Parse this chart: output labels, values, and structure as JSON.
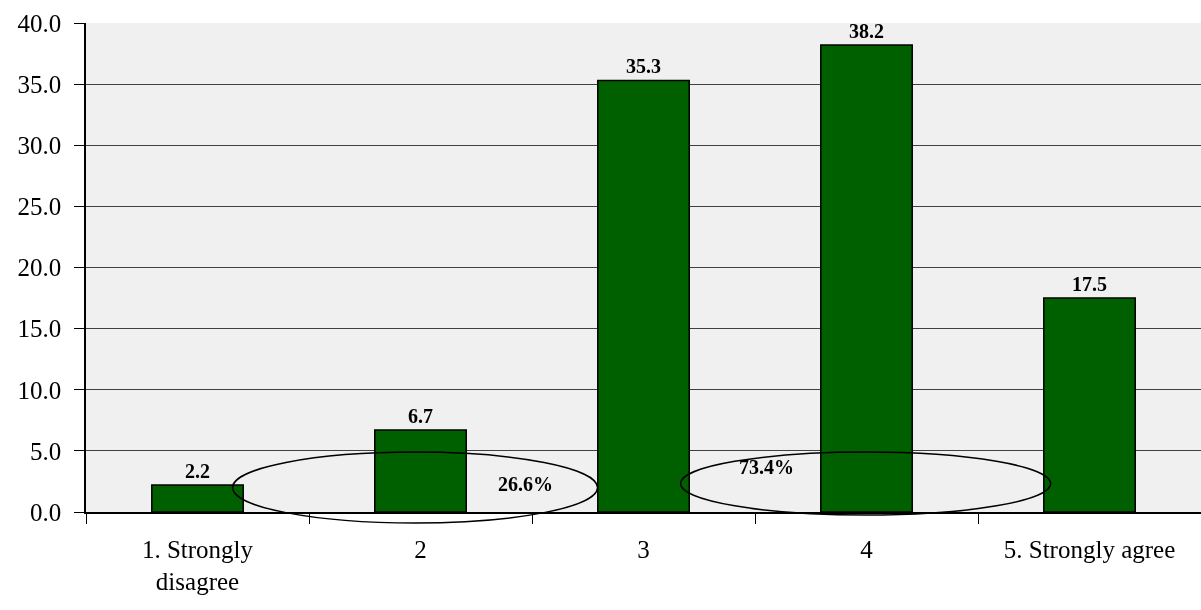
{
  "chart_data": {
    "type": "bar",
    "categories": [
      "1. Strongly disagree",
      "2",
      "3",
      "4",
      "5. Strongly agree"
    ],
    "values": [
      2.2,
      6.7,
      35.3,
      38.2,
      17.5
    ],
    "color": "#006000",
    "ylim": [
      0,
      40
    ],
    "yticks": [
      {
        "value": 0,
        "label": "0.0"
      },
      {
        "value": 5,
        "label": "5.0"
      },
      {
        "value": 10,
        "label": "10.0"
      },
      {
        "value": 15,
        "label": "15.0"
      },
      {
        "value": 20,
        "label": "20.0"
      },
      {
        "value": 25,
        "label": "25.0"
      },
      {
        "value": 30,
        "label": "30.0"
      },
      {
        "value": 35,
        "label": "35.0"
      },
      {
        "value": 40,
        "label": "40.0"
      }
    ],
    "grid": "y",
    "data_labels": true,
    "annotations": [
      "26.6%",
      "73.4%"
    ]
  }
}
